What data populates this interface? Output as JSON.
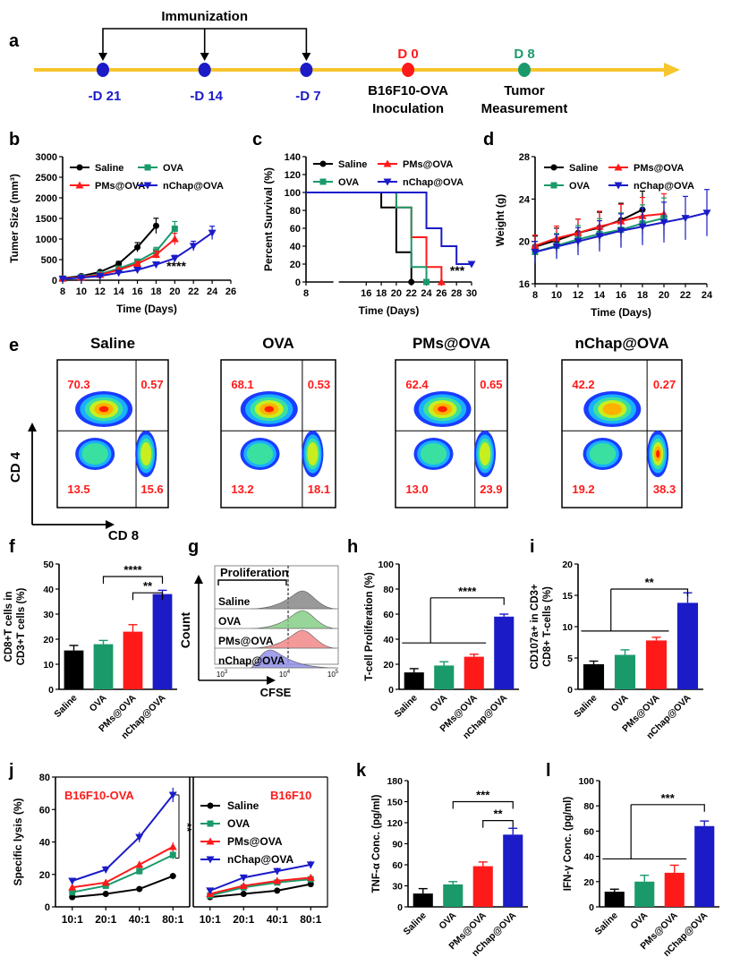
{
  "colors": {
    "saline": "#000000",
    "ova": "#1a9a6a",
    "pms": "#ff1a1a",
    "nchap": "#1b1bc8",
    "timeline": "#f7c52c",
    "red": "#ff1a1a",
    "blue": "#1b1bc8",
    "green": "#1a9a6a"
  },
  "timeline": {
    "panel": "a",
    "immunization": "Immunization",
    "events": [
      {
        "label": "-D 21",
        "day": -21,
        "color": "blue"
      },
      {
        "label": "-D 14",
        "day": -14,
        "color": "blue"
      },
      {
        "label": "-D 7",
        "day": -7,
        "color": "blue"
      },
      {
        "label": "D 0",
        "day": 0,
        "color": "red",
        "note": [
          "B16F10-OVA",
          "Inoculation"
        ]
      },
      {
        "label": "D 8",
        "day": 8,
        "color": "green",
        "note": [
          "Tumor",
          "Measurement"
        ]
      }
    ]
  },
  "chart_data": [
    {
      "panel": "b",
      "type": "line",
      "ylabel": "Tumer Size (mm³)",
      "xlabel": "Time (Days)",
      "xlim": [
        8,
        26
      ],
      "xticks": [
        8,
        10,
        12,
        14,
        16,
        18,
        20,
        22,
        24,
        26
      ],
      "ylim": [
        0,
        3000
      ],
      "yticks": [
        0,
        500,
        1000,
        1500,
        2000,
        2500,
        3000
      ],
      "annotation": "****",
      "grid": false,
      "series": [
        {
          "name": "Saline",
          "key": "saline",
          "marker": "circle",
          "x": [
            8,
            10,
            12,
            14,
            16,
            18
          ],
          "y": [
            50,
            100,
            200,
            400,
            800,
            1320
          ]
        },
        {
          "name": "OVA",
          "key": "ova",
          "marker": "square",
          "x": [
            8,
            10,
            12,
            14,
            16,
            18,
            20
          ],
          "y": [
            40,
            80,
            150,
            280,
            450,
            700,
            1250
          ]
        },
        {
          "name": "PMs@OVA",
          "key": "pms",
          "marker": "triangle-up",
          "x": [
            8,
            10,
            12,
            14,
            16,
            18,
            20
          ],
          "y": [
            40,
            70,
            130,
            250,
            400,
            620,
            1000
          ]
        },
        {
          "name": "nChap@OVA",
          "key": "nchap",
          "marker": "triangle-down",
          "x": [
            8,
            10,
            12,
            14,
            16,
            18,
            20,
            22,
            24
          ],
          "y": [
            30,
            60,
            100,
            180,
            250,
            380,
            530,
            830,
            1150
          ]
        }
      ]
    },
    {
      "panel": "c",
      "type": "line",
      "step": true,
      "ylabel": "Percent Survival (%)",
      "xlabel": "Time (Days)",
      "xlim": [
        8,
        30
      ],
      "xticks": [
        8,
        16,
        18,
        20,
        22,
        24,
        26,
        28,
        30
      ],
      "ylim": [
        0,
        140
      ],
      "yticks": [
        0,
        20,
        40,
        60,
        80,
        100,
        120,
        140
      ],
      "annotation": "***",
      "grid": false,
      "series": [
        {
          "name": "Saline",
          "key": "saline",
          "marker": "circle",
          "x": [
            8,
            18,
            20,
            22
          ],
          "y": [
            100,
            83.3,
            33.3,
            0
          ]
        },
        {
          "name": "PMs@OVA",
          "key": "pms",
          "marker": "triangle-up",
          "x": [
            8,
            20,
            22,
            24,
            26
          ],
          "y": [
            100,
            83.3,
            50,
            16.7,
            0
          ]
        },
        {
          "name": "OVA",
          "key": "ova",
          "marker": "square",
          "x": [
            8,
            20,
            22,
            24
          ],
          "y": [
            100,
            83.3,
            16.7,
            0
          ]
        },
        {
          "name": "nChap@OVA",
          "key": "nchap",
          "marker": "triangle-down",
          "x": [
            8,
            24,
            26,
            28,
            30
          ],
          "y": [
            100,
            60,
            40,
            20,
            20
          ]
        }
      ]
    },
    {
      "panel": "d",
      "type": "line",
      "ylabel": "Weight (g)",
      "xlabel": "Time (Days)",
      "xlim": [
        8,
        24
      ],
      "xticks": [
        8,
        10,
        12,
        14,
        16,
        18,
        20,
        22,
        24
      ],
      "ylim": [
        16,
        28
      ],
      "yticks": [
        16,
        20,
        24,
        28
      ],
      "grid": false,
      "series": [
        {
          "name": "Saline",
          "key": "saline",
          "marker": "circle",
          "x": [
            8,
            10,
            12,
            14,
            16,
            18
          ],
          "y": [
            19.5,
            20.1,
            20.8,
            21.3,
            22,
            23
          ]
        },
        {
          "name": "PMs@OVA",
          "key": "pms",
          "marker": "triangle-up",
          "x": [
            8,
            10,
            12,
            14,
            16,
            18,
            20
          ],
          "y": [
            19.6,
            20.3,
            20.8,
            21.4,
            21.9,
            22.4,
            22.6
          ]
        },
        {
          "name": "OVA",
          "key": "ova",
          "marker": "square",
          "x": [
            8,
            10,
            12,
            14,
            16,
            18,
            20
          ],
          "y": [
            19,
            19.6,
            20.2,
            20.7,
            21.1,
            21.7,
            22.2
          ]
        },
        {
          "name": "nChap@OVA",
          "key": "nchap",
          "marker": "triangle-down",
          "x": [
            8,
            10,
            12,
            14,
            16,
            18,
            20,
            22,
            24
          ],
          "y": [
            19,
            19.5,
            20,
            20.5,
            21,
            21.4,
            21.8,
            22.2,
            22.7
          ]
        }
      ]
    },
    {
      "panel": "f",
      "type": "bar",
      "ylabel": [
        "CD8+T cells in",
        "CD3+T cells (%)"
      ],
      "categories": [
        "Saline",
        "OVA",
        "PMs@OVA",
        "nChap@OVA"
      ],
      "values": [
        15.5,
        18,
        23,
        38
      ],
      "errors": [
        2,
        1.5,
        2.8,
        1.5
      ],
      "ylim": [
        0,
        50
      ],
      "yticks": [
        0,
        10,
        20,
        30,
        40,
        50
      ],
      "sig": [
        "****",
        "**"
      ]
    },
    {
      "panel": "h",
      "type": "bar",
      "ylabel": "T-cell Proliferation (%)",
      "categories": [
        "Saline",
        "OVA",
        "PMs@OVA",
        "nChap@OVA"
      ],
      "values": [
        13.5,
        19,
        26,
        58
      ],
      "errors": [
        3,
        3,
        2,
        2
      ],
      "ylim": [
        0,
        100
      ],
      "yticks": [
        0,
        20,
        40,
        60,
        80,
        100
      ],
      "sig": [
        "****"
      ]
    },
    {
      "panel": "i",
      "type": "bar",
      "ylabel": [
        "CD107a+ in CD3+",
        "CD8+ T-cells (%)"
      ],
      "categories": [
        "Saline",
        "OVA",
        "PMs@OVA",
        "nChap@OVA"
      ],
      "values": [
        4,
        5.5,
        7.8,
        13.8
      ],
      "errors": [
        0.5,
        0.8,
        0.5,
        1.6
      ],
      "ylim": [
        0,
        20
      ],
      "yticks": [
        0,
        5,
        10,
        15,
        20
      ],
      "sig": [
        "**"
      ]
    },
    {
      "panel": "j",
      "type": "line",
      "ylabel": "Specific lysis (%)",
      "categories": [
        "10:1",
        "20:1",
        "40:1",
        "80:1"
      ],
      "ylim": [
        0,
        80
      ],
      "yticks": [
        0,
        20,
        40,
        60,
        80
      ],
      "left_title": "B16F10-OVA",
      "right_title": "B16F10",
      "annotation": "**",
      "series_left": [
        {
          "name": "Saline",
          "key": "saline",
          "marker": "circle",
          "values": [
            6,
            8,
            11,
            19
          ]
        },
        {
          "name": "OVA",
          "key": "ova",
          "marker": "square",
          "values": [
            9,
            13,
            22,
            32
          ]
        },
        {
          "name": "PMs@OVA",
          "key": "pms",
          "marker": "triangle-up",
          "values": [
            12,
            15,
            26,
            37
          ]
        },
        {
          "name": "nChap@OVA",
          "key": "nchap",
          "marker": "triangle-down",
          "values": [
            16,
            23,
            43,
            69
          ]
        }
      ],
      "series_right": [
        {
          "name": "Saline",
          "key": "saline",
          "marker": "circle",
          "values": [
            6,
            8,
            10,
            14
          ]
        },
        {
          "name": "OVA",
          "key": "ova",
          "marker": "square",
          "values": [
            7,
            12,
            15,
            17
          ]
        },
        {
          "name": "PMs@OVA",
          "key": "pms",
          "marker": "triangle-up",
          "values": [
            8,
            13,
            16,
            18
          ]
        },
        {
          "name": "nChap@OVA",
          "key": "nchap",
          "marker": "triangle-down",
          "values": [
            10,
            18,
            22,
            26
          ]
        }
      ]
    },
    {
      "panel": "k",
      "type": "bar",
      "ylabel": "TNF-α Conc. (pg/ml)",
      "categories": [
        "Saline",
        "OVA",
        "PMs@OVA",
        "nChap@OVA"
      ],
      "values": [
        19,
        32,
        58,
        103
      ],
      "errors": [
        7,
        4,
        6,
        9
      ],
      "ylim": [
        0,
        180
      ],
      "yticks": [
        0,
        30,
        60,
        90,
        120,
        150,
        180
      ],
      "sig": [
        "***",
        "**"
      ]
    },
    {
      "panel": "l",
      "type": "bar",
      "ylabel": "IFN-γ Conc. (pg/ml)",
      "categories": [
        "Saline",
        "OVA",
        "PMs@OVA",
        "nChap@OVA"
      ],
      "values": [
        12,
        20,
        27,
        64
      ],
      "errors": [
        2,
        5,
        6,
        4
      ],
      "ylim": [
        0,
        100
      ],
      "yticks": [
        0,
        20,
        40,
        60,
        80,
        100
      ],
      "sig": [
        "***"
      ]
    }
  ],
  "flow": {
    "panel": "e",
    "yaxis": "CD 4",
    "xaxis": "CD 8",
    "plots": [
      {
        "title": "Saline",
        "q": [
          "70.3",
          "0.57",
          "13.5",
          "15.6"
        ]
      },
      {
        "title": "OVA",
        "q": [
          "68.1",
          "0.53",
          "13.2",
          "18.1"
        ]
      },
      {
        "title": "PMs@OVA",
        "q": [
          "62.4",
          "0.65",
          "13.0",
          "23.9"
        ]
      },
      {
        "title": "nChap@OVA",
        "q": [
          "42.2",
          "0.27",
          "19.2",
          "38.3"
        ]
      }
    ]
  },
  "histogram": {
    "panel": "g",
    "header": "Proliferation",
    "ylabel": "Count",
    "xlabel": "CFSE",
    "ticks": [
      "10",
      "10",
      "10"
    ],
    "tick_exponents": [
      "3",
      "4",
      "5"
    ],
    "rows": [
      {
        "label": "Saline",
        "color": "#7f7f7f"
      },
      {
        "label": "OVA",
        "color": "#7ecb7e"
      },
      {
        "label": "PMs@OVA",
        "color": "#f08080"
      },
      {
        "label": "nChap@OVA",
        "color": "#8a8ae8"
      }
    ]
  }
}
